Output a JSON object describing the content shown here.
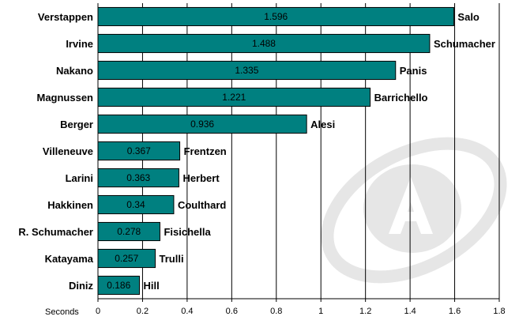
{
  "chart_data": {
    "type": "bar",
    "orientation": "horizontal",
    "categories": [
      "Verstappen",
      "Irvine",
      "Nakano",
      "Magnussen",
      "Berger",
      "Villeneuve",
      "Larini",
      "Hakkinen",
      "R. Schumacher",
      "Katayama",
      "Diniz"
    ],
    "values": [
      1.596,
      1.488,
      1.335,
      1.221,
      0.936,
      0.367,
      0.363,
      0.34,
      0.278,
      0.257,
      0.186
    ],
    "value_labels": [
      "1.596",
      "1.488",
      "1.335",
      "1.221",
      "0.936",
      "0.367",
      "0.363",
      "0.34",
      "0.278",
      "0.257",
      "0.186"
    ],
    "reference_names": [
      "Salo",
      "Schumacher",
      "Panis",
      "Barrichello",
      "Alesi",
      "Frentzen",
      "Herbert",
      "Coulthard",
      "Fisichella",
      "Trulli",
      "Hill"
    ],
    "xlabel": "Seconds",
    "xlim": [
      0,
      1.8
    ],
    "xticks": [
      0,
      0.2,
      0.4,
      0.6,
      0.8,
      1,
      1.2,
      1.4,
      1.6,
      1.8
    ],
    "xtick_labels": [
      "0",
      "0.2",
      "0.4",
      "0.6",
      "0.8",
      "1",
      "1.2",
      "1.4",
      "1.6",
      "1.8"
    ],
    "grid": "vertical",
    "colors": {
      "bar_fill": "#008080",
      "bar_stroke": "#000000",
      "grid": "#000000",
      "watermark": "#e8e8e8"
    }
  }
}
